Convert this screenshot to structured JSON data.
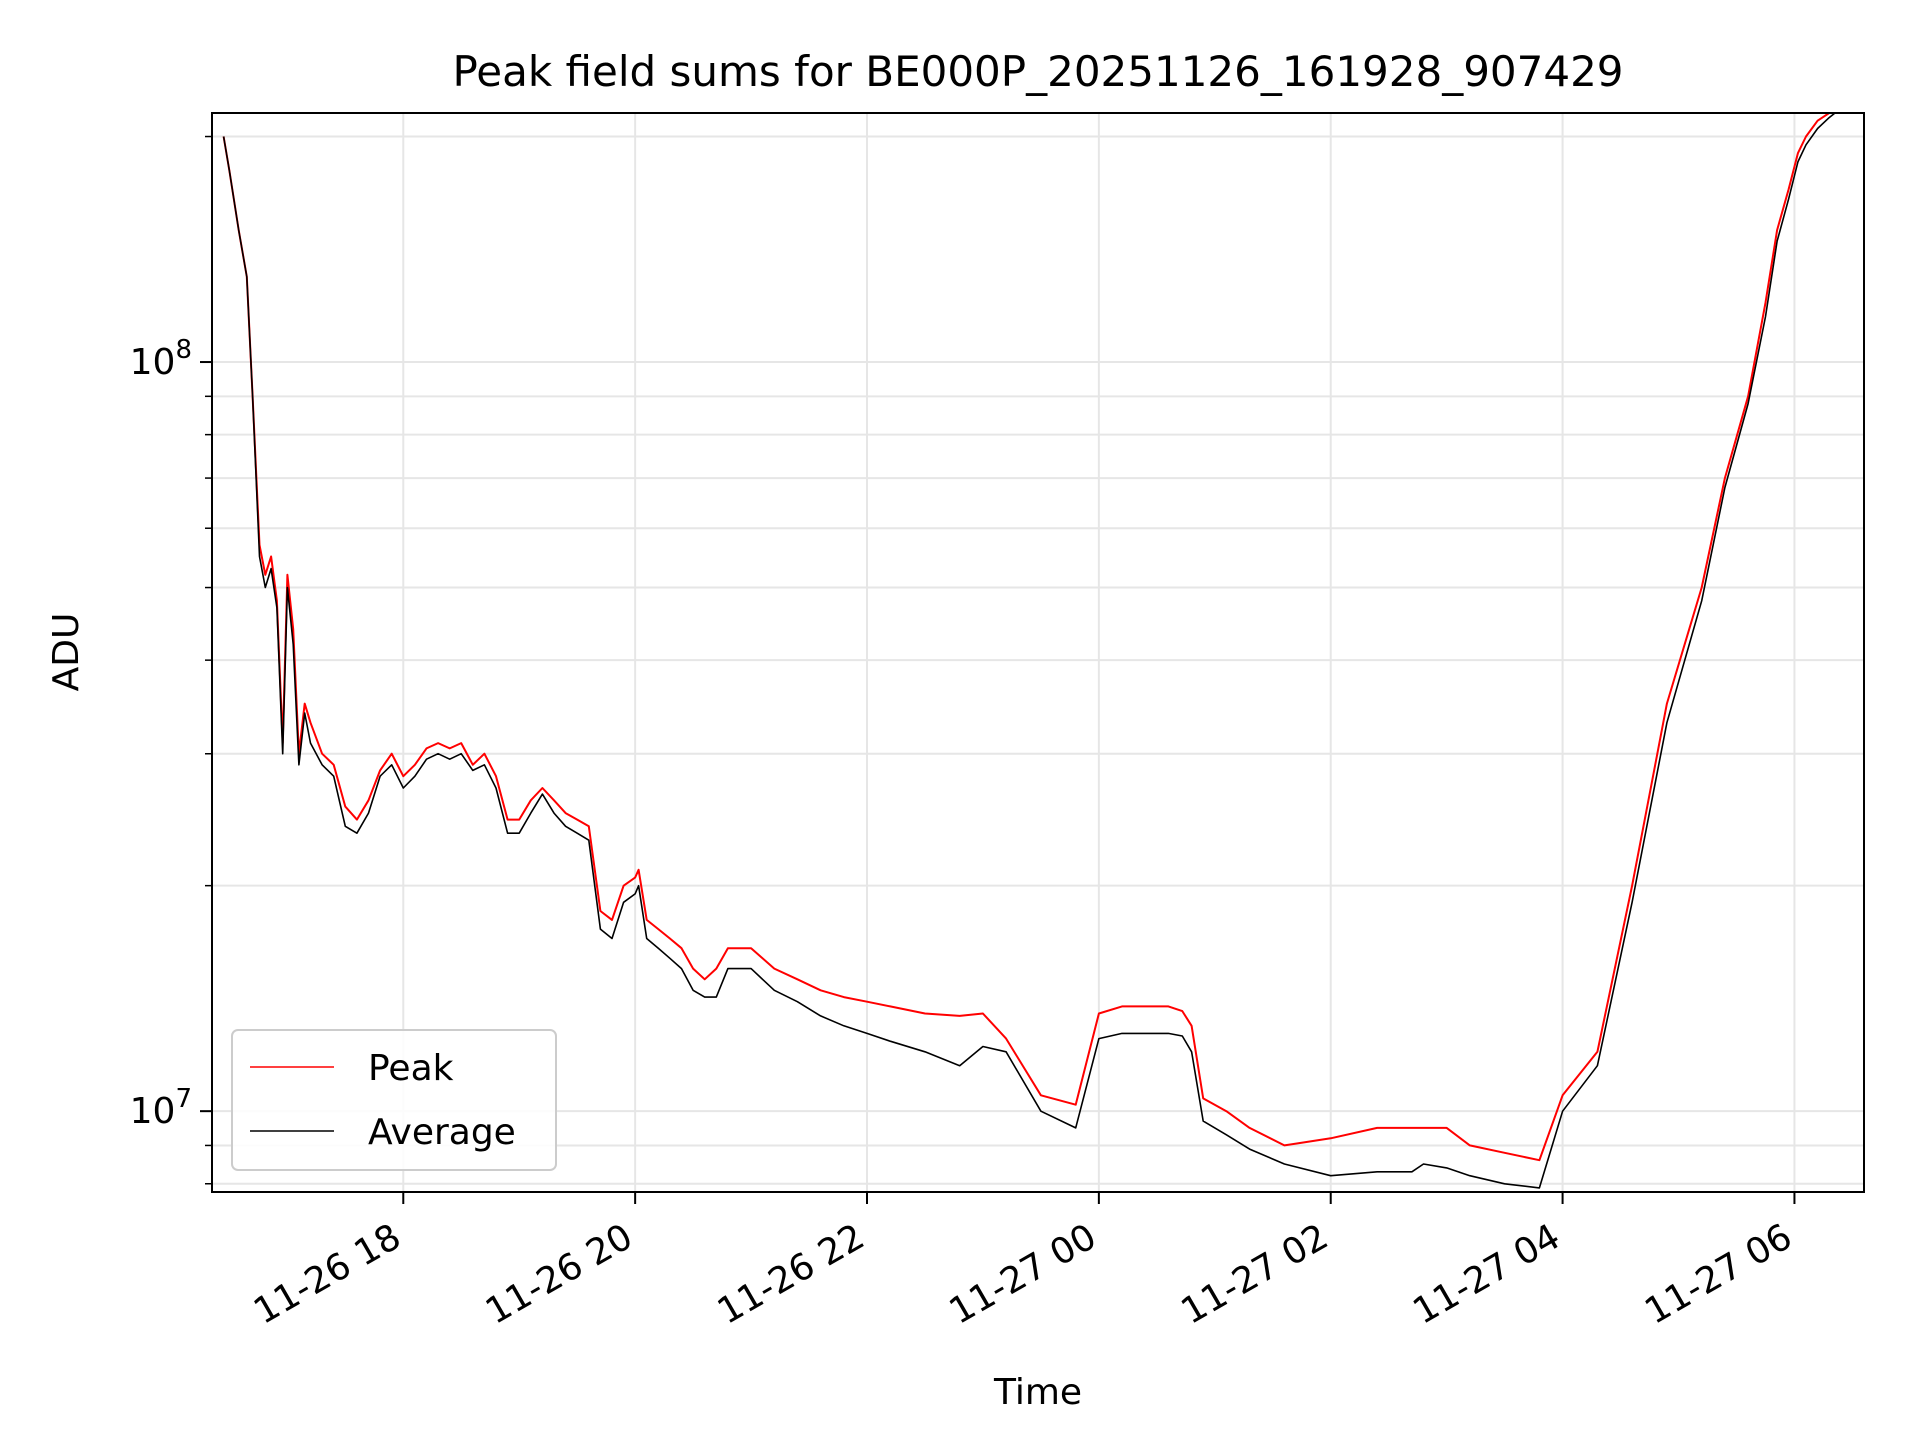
{
  "chart_data": {
    "type": "line",
    "title": "Peak field sums for BE000P_20251126_161928_907429",
    "xlabel": "Time",
    "ylabel": "ADU",
    "yscale": "log",
    "xlim_hours": [
      16.35,
      30.6
    ],
    "ylim": [
      7800000,
      215000000
    ],
    "grid": true,
    "legend_position": "lower-left",
    "x_tick_hours": [
      18,
      20,
      22,
      24,
      26,
      28,
      30
    ],
    "x_tick_labels": [
      "11-26 18",
      "11-26 20",
      "11-26 22",
      "11-27 00",
      "11-27 02",
      "11-27 04",
      "11-27 06"
    ],
    "y_tick_values": [
      10000000,
      100000000
    ],
    "y_tick_base": "10",
    "y_tick_exponents": [
      "7",
      "8"
    ],
    "series": [
      {
        "name": "Peak",
        "color": "#ff0000",
        "x_hours": [
          16.45,
          16.5,
          16.58,
          16.65,
          16.7,
          16.76,
          16.81,
          16.86,
          16.91,
          16.96,
          17.0,
          17.05,
          17.1,
          17.15,
          17.2,
          17.3,
          17.4,
          17.5,
          17.6,
          17.7,
          17.8,
          17.9,
          18.0,
          18.1,
          18.2,
          18.3,
          18.4,
          18.5,
          18.6,
          18.7,
          18.8,
          18.9,
          19.0,
          19.1,
          19.2,
          19.3,
          19.4,
          19.5,
          19.6,
          19.7,
          19.8,
          19.9,
          20.0,
          20.03,
          20.1,
          20.2,
          20.3,
          20.4,
          20.5,
          20.6,
          20.7,
          20.8,
          21.0,
          21.2,
          21.4,
          21.6,
          21.8,
          22.0,
          22.2,
          22.5,
          22.8,
          23.0,
          23.2,
          23.5,
          23.8,
          24.0,
          24.2,
          24.4,
          24.6,
          24.72,
          24.8,
          24.9,
          25.1,
          25.3,
          25.6,
          26.0,
          26.4,
          26.7,
          26.8,
          27.0,
          27.2,
          27.5,
          27.8,
          28.0,
          28.3,
          28.6,
          28.9,
          29.2,
          29.4,
          29.6,
          29.75,
          29.85,
          29.95,
          30.03,
          30.1,
          30.2,
          30.3,
          30.35
        ],
        "values": [
          200000000,
          180000000,
          150000000,
          130000000,
          90000000,
          57000000,
          52000000,
          55000000,
          48000000,
          31000000,
          52000000,
          44000000,
          30000000,
          35000000,
          33000000,
          30000000,
          29000000,
          25500000,
          24500000,
          26000000,
          28500000,
          30000000,
          28000000,
          29000000,
          30500000,
          31000000,
          30500000,
          31000000,
          29000000,
          30000000,
          28000000,
          24500000,
          24500000,
          26000000,
          27000000,
          26000000,
          25000000,
          24500000,
          24000000,
          18500000,
          18000000,
          20000000,
          20500000,
          21000000,
          18000000,
          17500000,
          17000000,
          16500000,
          15500000,
          15000000,
          15500000,
          16500000,
          16500000,
          15500000,
          15000000,
          14500000,
          14200000,
          14000000,
          13800000,
          13500000,
          13400000,
          13500000,
          12500000,
          10500000,
          10200000,
          13500000,
          13800000,
          13800000,
          13800000,
          13600000,
          13000000,
          10400000,
          10000000,
          9500000,
          9000000,
          9200000,
          9500000,
          9500000,
          9500000,
          9500000,
          9000000,
          8800000,
          8600000,
          10500000,
          12000000,
          20000000,
          35000000,
          50000000,
          70000000,
          90000000,
          120000000,
          150000000,
          170000000,
          190000000,
          200000000,
          210000000,
          215000000,
          215000000
        ]
      },
      {
        "name": "Average",
        "color": "#000000",
        "x_hours": [
          16.45,
          16.5,
          16.58,
          16.65,
          16.7,
          16.76,
          16.81,
          16.86,
          16.91,
          16.96,
          17.0,
          17.05,
          17.1,
          17.15,
          17.2,
          17.3,
          17.4,
          17.5,
          17.6,
          17.7,
          17.8,
          17.9,
          18.0,
          18.1,
          18.2,
          18.3,
          18.4,
          18.5,
          18.6,
          18.7,
          18.8,
          18.9,
          19.0,
          19.1,
          19.2,
          19.3,
          19.4,
          19.5,
          19.6,
          19.7,
          19.8,
          19.9,
          20.0,
          20.03,
          20.1,
          20.2,
          20.3,
          20.4,
          20.5,
          20.6,
          20.7,
          20.8,
          21.0,
          21.2,
          21.4,
          21.6,
          21.8,
          22.0,
          22.2,
          22.5,
          22.8,
          23.0,
          23.2,
          23.5,
          23.8,
          24.0,
          24.2,
          24.4,
          24.6,
          24.72,
          24.8,
          24.9,
          25.1,
          25.3,
          25.6,
          26.0,
          26.4,
          26.7,
          26.8,
          27.0,
          27.2,
          27.5,
          27.8,
          28.0,
          28.3,
          28.6,
          28.9,
          29.2,
          29.4,
          29.6,
          29.75,
          29.85,
          29.95,
          30.03,
          30.1,
          30.2,
          30.3,
          30.35
        ],
        "values": [
          200000000,
          180000000,
          150000000,
          130000000,
          90000000,
          55000000,
          50000000,
          53000000,
          47000000,
          30000000,
          50000000,
          42000000,
          29000000,
          34000000,
          31000000,
          29000000,
          28000000,
          24000000,
          23500000,
          25000000,
          28000000,
          29000000,
          27000000,
          28000000,
          29500000,
          30000000,
          29500000,
          30000000,
          28500000,
          29000000,
          27000000,
          23500000,
          23500000,
          25000000,
          26500000,
          25000000,
          24000000,
          23500000,
          23000000,
          17500000,
          17000000,
          19000000,
          19500000,
          20000000,
          17000000,
          16500000,
          16000000,
          15500000,
          14500000,
          14200000,
          14200000,
          15500000,
          15500000,
          14500000,
          14000000,
          13400000,
          13000000,
          12700000,
          12400000,
          12000000,
          11500000,
          12200000,
          12000000,
          10000000,
          9500000,
          12500000,
          12700000,
          12700000,
          12700000,
          12600000,
          12000000,
          9700000,
          9300000,
          8900000,
          8500000,
          8200000,
          8300000,
          8300000,
          8500000,
          8400000,
          8200000,
          8000000,
          7900000,
          10000000,
          11500000,
          19000000,
          33000000,
          48000000,
          68000000,
          88000000,
          115000000,
          145000000,
          165000000,
          185000000,
          195000000,
          205000000,
          212000000,
          215000000
        ]
      }
    ]
  }
}
